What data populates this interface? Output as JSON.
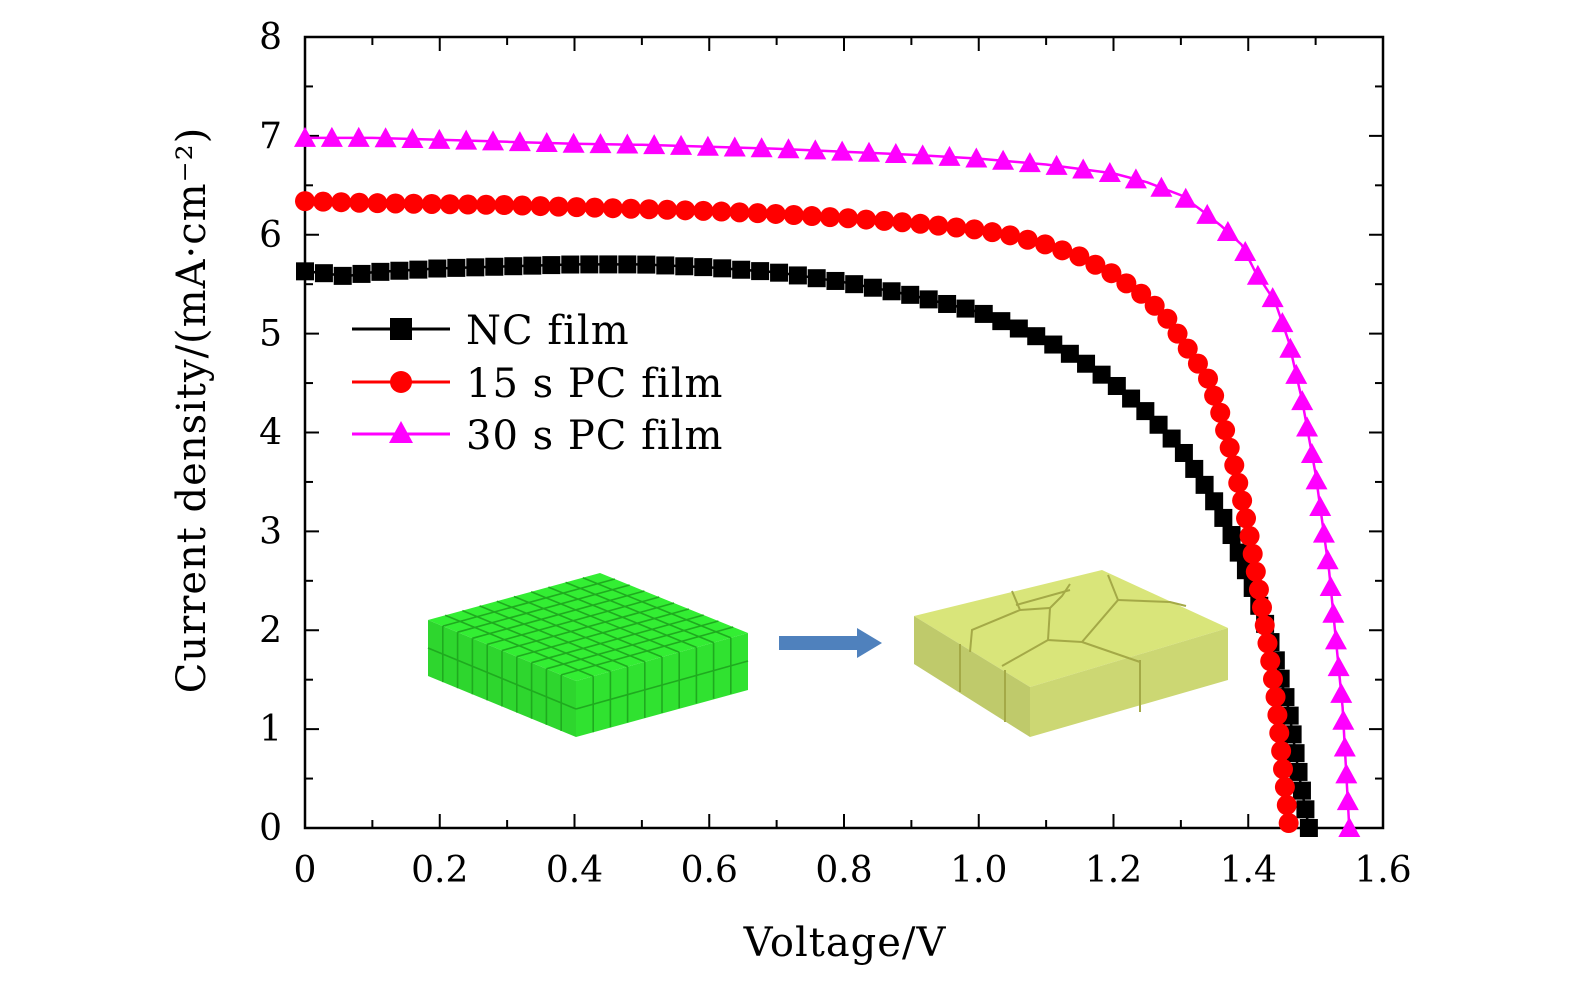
{
  "chart_data": {
    "type": "line",
    "xlabel": "Voltage/V",
    "ylabel": "Current density/(mA·cm⁻²)",
    "xlim": [
      0,
      1.6
    ],
    "ylim": [
      0,
      8
    ],
    "x_ticks": [
      "0",
      "0.2",
      "0.4",
      "0.6",
      "0.8",
      "1.0",
      "1.2",
      "1.4",
      "1.6"
    ],
    "y_ticks": [
      "0",
      "1",
      "2",
      "3",
      "4",
      "5",
      "6",
      "7",
      "8"
    ],
    "legend_position": "center-left",
    "series": [
      {
        "name": "NC film",
        "color": "#000000",
        "marker": "square",
        "points": [
          [
            0,
            5.63
          ],
          [
            0.03,
            5.61
          ],
          [
            0.06,
            5.58
          ],
          [
            0.1,
            5.62
          ],
          [
            0.2,
            5.66
          ],
          [
            0.3,
            5.68
          ],
          [
            0.4,
            5.7
          ],
          [
            0.5,
            5.7
          ],
          [
            0.6,
            5.67
          ],
          [
            0.7,
            5.62
          ],
          [
            0.8,
            5.52
          ],
          [
            0.9,
            5.39
          ],
          [
            1.0,
            5.22
          ],
          [
            1.05,
            5.08
          ],
          [
            1.1,
            4.93
          ],
          [
            1.15,
            4.74
          ],
          [
            1.2,
            4.5
          ],
          [
            1.25,
            4.2
          ],
          [
            1.3,
            3.84
          ],
          [
            1.34,
            3.42
          ],
          [
            1.37,
            3.05
          ],
          [
            1.4,
            2.55
          ],
          [
            1.42,
            2.18
          ],
          [
            1.44,
            1.72
          ],
          [
            1.46,
            1.2
          ],
          [
            1.475,
            0.55
          ],
          [
            1.49,
            0.0
          ]
        ]
      },
      {
        "name": "15 s PC film",
        "color": "#ff0000",
        "marker": "circle",
        "points": [
          [
            0,
            6.34
          ],
          [
            0.1,
            6.32
          ],
          [
            0.2,
            6.31
          ],
          [
            0.3,
            6.3
          ],
          [
            0.4,
            6.28
          ],
          [
            0.5,
            6.26
          ],
          [
            0.6,
            6.24
          ],
          [
            0.7,
            6.21
          ],
          [
            0.8,
            6.17
          ],
          [
            0.9,
            6.12
          ],
          [
            1.0,
            6.05
          ],
          [
            1.05,
            5.99
          ],
          [
            1.1,
            5.9
          ],
          [
            1.15,
            5.78
          ],
          [
            1.2,
            5.6
          ],
          [
            1.25,
            5.36
          ],
          [
            1.28,
            5.15
          ],
          [
            1.31,
            4.85
          ],
          [
            1.34,
            4.55
          ],
          [
            1.36,
            4.17
          ],
          [
            1.38,
            3.65
          ],
          [
            1.4,
            3.03
          ],
          [
            1.42,
            2.25
          ],
          [
            1.44,
            1.36
          ],
          [
            1.45,
            0.7
          ],
          [
            1.46,
            0.05
          ]
        ]
      },
      {
        "name": "30 s PC film",
        "color": "#ff00ff",
        "marker": "triangle",
        "points": [
          [
            0,
            6.98
          ],
          [
            0.1,
            6.98
          ],
          [
            0.2,
            6.96
          ],
          [
            0.3,
            6.94
          ],
          [
            0.4,
            6.92
          ],
          [
            0.5,
            6.91
          ],
          [
            0.6,
            6.89
          ],
          [
            0.7,
            6.87
          ],
          [
            0.8,
            6.84
          ],
          [
            0.9,
            6.81
          ],
          [
            1.0,
            6.77
          ],
          [
            1.1,
            6.71
          ],
          [
            1.2,
            6.62
          ],
          [
            1.25,
            6.53
          ],
          [
            1.3,
            6.4
          ],
          [
            1.33,
            6.25
          ],
          [
            1.36,
            6.09
          ],
          [
            1.39,
            5.9
          ],
          [
            1.41,
            5.63
          ],
          [
            1.44,
            5.32
          ],
          [
            1.46,
            4.92
          ],
          [
            1.48,
            4.32
          ],
          [
            1.5,
            3.58
          ],
          [
            1.52,
            2.6
          ],
          [
            1.54,
            1.22
          ],
          [
            1.55,
            0.0
          ]
        ]
      }
    ],
    "inset": {
      "before_color": "#33ee33",
      "after_color": "#d9e57a",
      "arrow_color": "#4f81bd"
    }
  }
}
